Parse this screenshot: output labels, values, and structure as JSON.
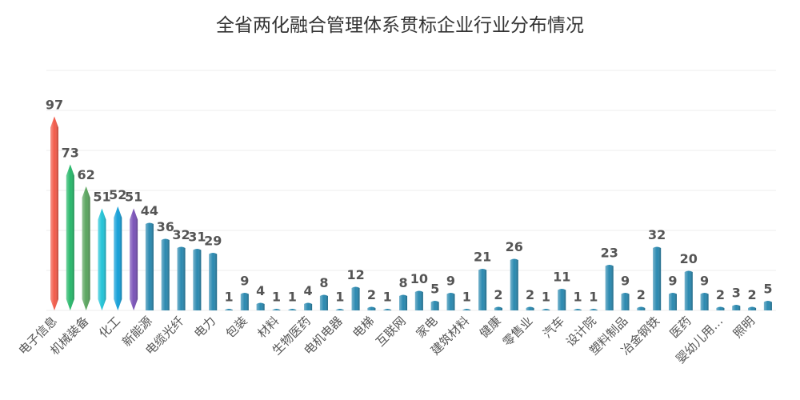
{
  "chart_data": {
    "type": "bar",
    "title": "全省两化融合管理体系贯标企业行业分布情况",
    "categories": [
      "电子信息",
      "",
      "机械装备",
      "",
      "化工",
      "",
      "新能源",
      "",
      "电缆光纤",
      "",
      "电力",
      "",
      "包装",
      "",
      "材料",
      "",
      "生物医药",
      "",
      "电机电器",
      "",
      "电梯",
      "",
      "互联网",
      "",
      "家电",
      "",
      "建筑材料",
      "",
      "健康",
      "",
      "零售业",
      "",
      "汽车",
      "",
      "设计院",
      "",
      "塑料制品",
      "",
      "冶金钢铁",
      "",
      "医药",
      "",
      "婴幼儿用…",
      "",
      "照明",
      ""
    ],
    "values": [
      97,
      73,
      62,
      51,
      52,
      51,
      44,
      36,
      32,
      31,
      29,
      1,
      9,
      4,
      1,
      1,
      4,
      8,
      1,
      12,
      2,
      1,
      8,
      10,
      5,
      9,
      1,
      21,
      2,
      26,
      2,
      1,
      11,
      1,
      1,
      23,
      9,
      2,
      32,
      9,
      20,
      9,
      2,
      3,
      2,
      5
    ],
    "ylim": [
      0,
      120
    ],
    "grid": true,
    "y_axis_labels_visible": false,
    "legend": "none",
    "colors": {
      "bar_colors_first": [
        "#f25b4a",
        "#27b86a",
        "#5aa55e",
        "#22c4d8",
        "#149fd8",
        "#7a52b8"
      ],
      "default_bar": "#2a89b0",
      "gridline": "#eeeeee",
      "label_text": "#555555",
      "value_text": "#555555"
    }
  }
}
